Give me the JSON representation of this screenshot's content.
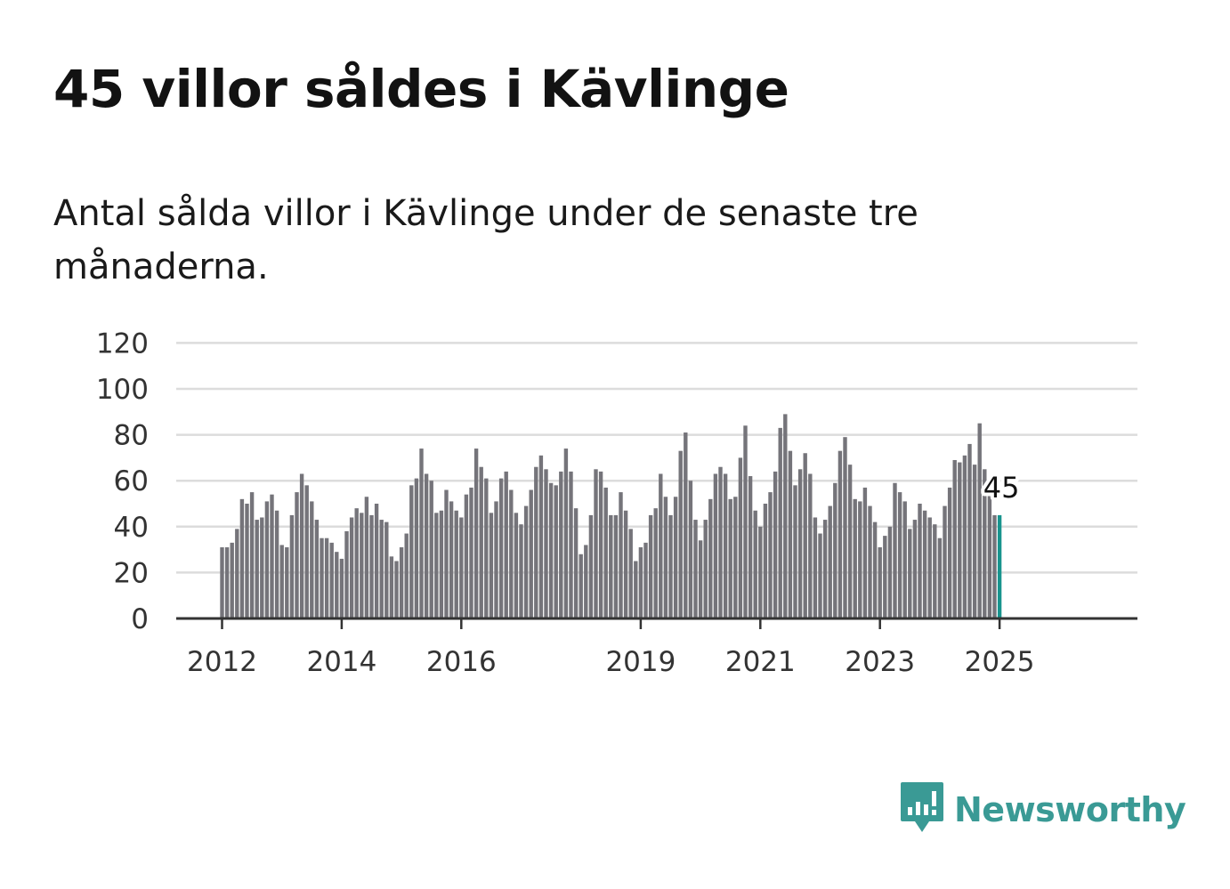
{
  "header": {
    "title": "45 villor såldes i Kävlinge",
    "subtitle": "Antal sålda villor i Kävlinge under de senaste tre månaderna."
  },
  "brand": {
    "name": "Newsworthy",
    "icon": "newsworthy-logo-icon",
    "color": "#3a9a95"
  },
  "colors": {
    "bar": "#75747a",
    "highlight": "#18948e",
    "grid": "#dcdcdc",
    "axis": "#333333"
  },
  "chart_data": {
    "type": "bar",
    "title": "",
    "xlabel": "",
    "ylabel": "",
    "ylim": [
      0,
      120
    ],
    "yticks": [
      "0",
      "20",
      "40",
      "60",
      "80",
      "100",
      "120"
    ],
    "xticks": [
      "2012",
      "2014",
      "2016",
      "2019",
      "2021",
      "2023",
      "2025"
    ],
    "grid": true,
    "start_month": "2012-01",
    "values": [
      31,
      31,
      33,
      39,
      52,
      50,
      55,
      43,
      44,
      51,
      54,
      47,
      32,
      31,
      45,
      55,
      63,
      58,
      51,
      43,
      35,
      35,
      33,
      29,
      26,
      38,
      44,
      48,
      46,
      53,
      45,
      50,
      43,
      42,
      27,
      25,
      31,
      37,
      58,
      61,
      74,
      63,
      60,
      46,
      47,
      56,
      51,
      47,
      44,
      54,
      57,
      74,
      66,
      61,
      46,
      51,
      61,
      64,
      56,
      46,
      41,
      49,
      56,
      66,
      71,
      65,
      59,
      58,
      64,
      74,
      64,
      48,
      28,
      32,
      45,
      65,
      64,
      57,
      45,
      45,
      55,
      47,
      39,
      25,
      31,
      33,
      45,
      48,
      63,
      53,
      45,
      53,
      73,
      81,
      60,
      43,
      34,
      43,
      52,
      63,
      66,
      63,
      52,
      53,
      70,
      84,
      62,
      47,
      40,
      50,
      55,
      64,
      83,
      89,
      73,
      58,
      65,
      72,
      63,
      44,
      37,
      43,
      49,
      59,
      73,
      79,
      67,
      52,
      51,
      57,
      49,
      42,
      31,
      36,
      40,
      59,
      55,
      51,
      39,
      43,
      50,
      47,
      44,
      41,
      35,
      49,
      57,
      69,
      68,
      71,
      76,
      67,
      85,
      65,
      57,
      45,
      45
    ],
    "highlight": {
      "value": 45,
      "label": "45"
    }
  }
}
